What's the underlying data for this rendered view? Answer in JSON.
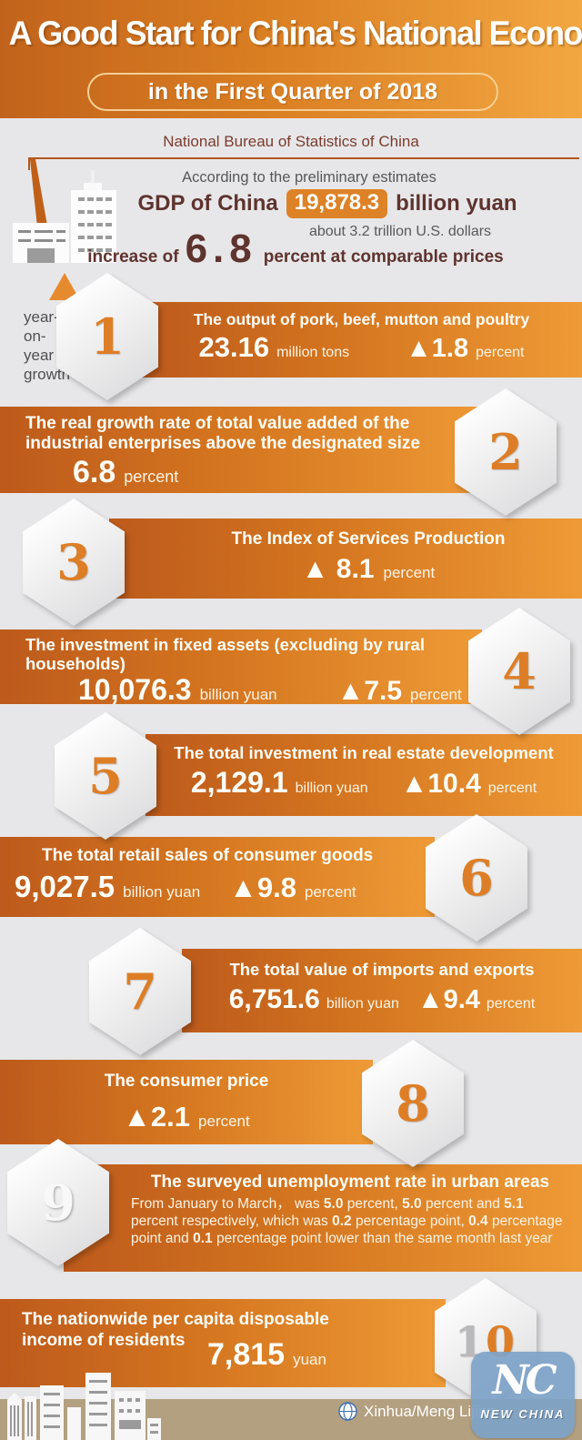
{
  "header": {
    "title": "A Good Start for China's National Economy",
    "subtitle": "in the First Quarter of 2018"
  },
  "intro": {
    "source": "National Bureau of Statistics of China",
    "according": "According to the preliminary estimates",
    "gdp_label": "GDP of China",
    "gdp_value": "19,878.3",
    "gdp_unit": "billion yuan",
    "usd_note": "about 3.2 trillion U.S. dollars",
    "increase_prefix": "increase of",
    "increase_value": "6.8",
    "increase_suffix": "percent at comparable prices"
  },
  "legend": {
    "symbol_name": "up-triangle",
    "line1": "year-",
    "line2": "on-",
    "line3": "year",
    "line4": "growth"
  },
  "items": [
    {
      "num": "1",
      "title": "The output of pork, beef, mutton and poultry",
      "value": "23.16",
      "unit": "million tons",
      "delta": "▲1.8",
      "delta_unit": "percent"
    },
    {
      "num": "2",
      "title": "The real growth rate of total value added of the industrial enterprises above the designated size",
      "value": "6.8",
      "unit": "percent"
    },
    {
      "num": "3",
      "title": "The Index of Services Production",
      "delta": "▲ 8.1",
      "delta_unit": "percent"
    },
    {
      "num": "4",
      "title": "The investment in fixed assets (excluding by rural households)",
      "value": "10,076.3",
      "unit": "billion yuan",
      "delta": "▲7.5",
      "delta_unit": "percent"
    },
    {
      "num": "5",
      "title": "The total investment in real estate development",
      "value": "2,129.1",
      "unit": "billion yuan",
      "delta": "▲10.4",
      "delta_unit": "percent"
    },
    {
      "num": "6",
      "title": "The total retail sales of consumer goods",
      "value": "9,027.5",
      "unit": "billion yuan",
      "delta": "▲9.8",
      "delta_unit": "percent"
    },
    {
      "num": "7",
      "title": "The total value of imports and exports",
      "value": "6,751.6",
      "unit": "billion yuan",
      "delta": "▲9.4",
      "delta_unit": "percent"
    },
    {
      "num": "8",
      "title": "The consumer price",
      "delta": "▲2.1",
      "delta_unit": "percent"
    },
    {
      "num": "9",
      "title": "The surveyed unemployment rate in urban areas",
      "body_segments": [
        {
          "text": "From January to March， was ",
          "bold": false
        },
        {
          "text": "5.0",
          "bold": true
        },
        {
          "text": " percent, ",
          "bold": false
        },
        {
          "text": "5.0",
          "bold": true
        },
        {
          "text": " percent and ",
          "bold": false
        },
        {
          "text": "5.1",
          "bold": true
        },
        {
          "text": " percent respectively, which was ",
          "bold": false
        },
        {
          "text": "0.2",
          "bold": true
        },
        {
          "text": " percentage point, ",
          "bold": false
        },
        {
          "text": "0.4",
          "bold": true
        },
        {
          "text": " percentage point and ",
          "bold": false
        },
        {
          "text": "0.1",
          "bold": true
        },
        {
          "text": " percentage point lower than the same month last year",
          "bold": false
        }
      ]
    },
    {
      "num": "10",
      "num_parts": [
        "1",
        "0"
      ],
      "title": "The nationwide per capita disposable income of residents",
      "value": "7,815",
      "unit": "yuan"
    }
  ],
  "item4_title_line1": "The investment in fixed assets (excluding by rural",
  "item4_title_line2": "households)",
  "item10_title_line1": "The nationwide per capita disposable",
  "item10_title_line2": "income of residents",
  "footer": {
    "credit": "Xinhua/Meng Lijing",
    "logo_monogram": "NC",
    "logo_text": "NEW CHINA"
  },
  "colors": {
    "accent_orange": "#dd7f27",
    "header_gradient_left": "#c2631c",
    "header_gradient_right": "#f2a741",
    "bar_gradient_left": "#bd5a1c",
    "bar_gradient_right": "#ee9a36",
    "maroon_text": "#5f332e",
    "gray_text": "#57585a",
    "footer_tan": "#b3a080",
    "logo_blue": "#7ea3c7",
    "hexagon_fill": "#e4e4e6"
  }
}
